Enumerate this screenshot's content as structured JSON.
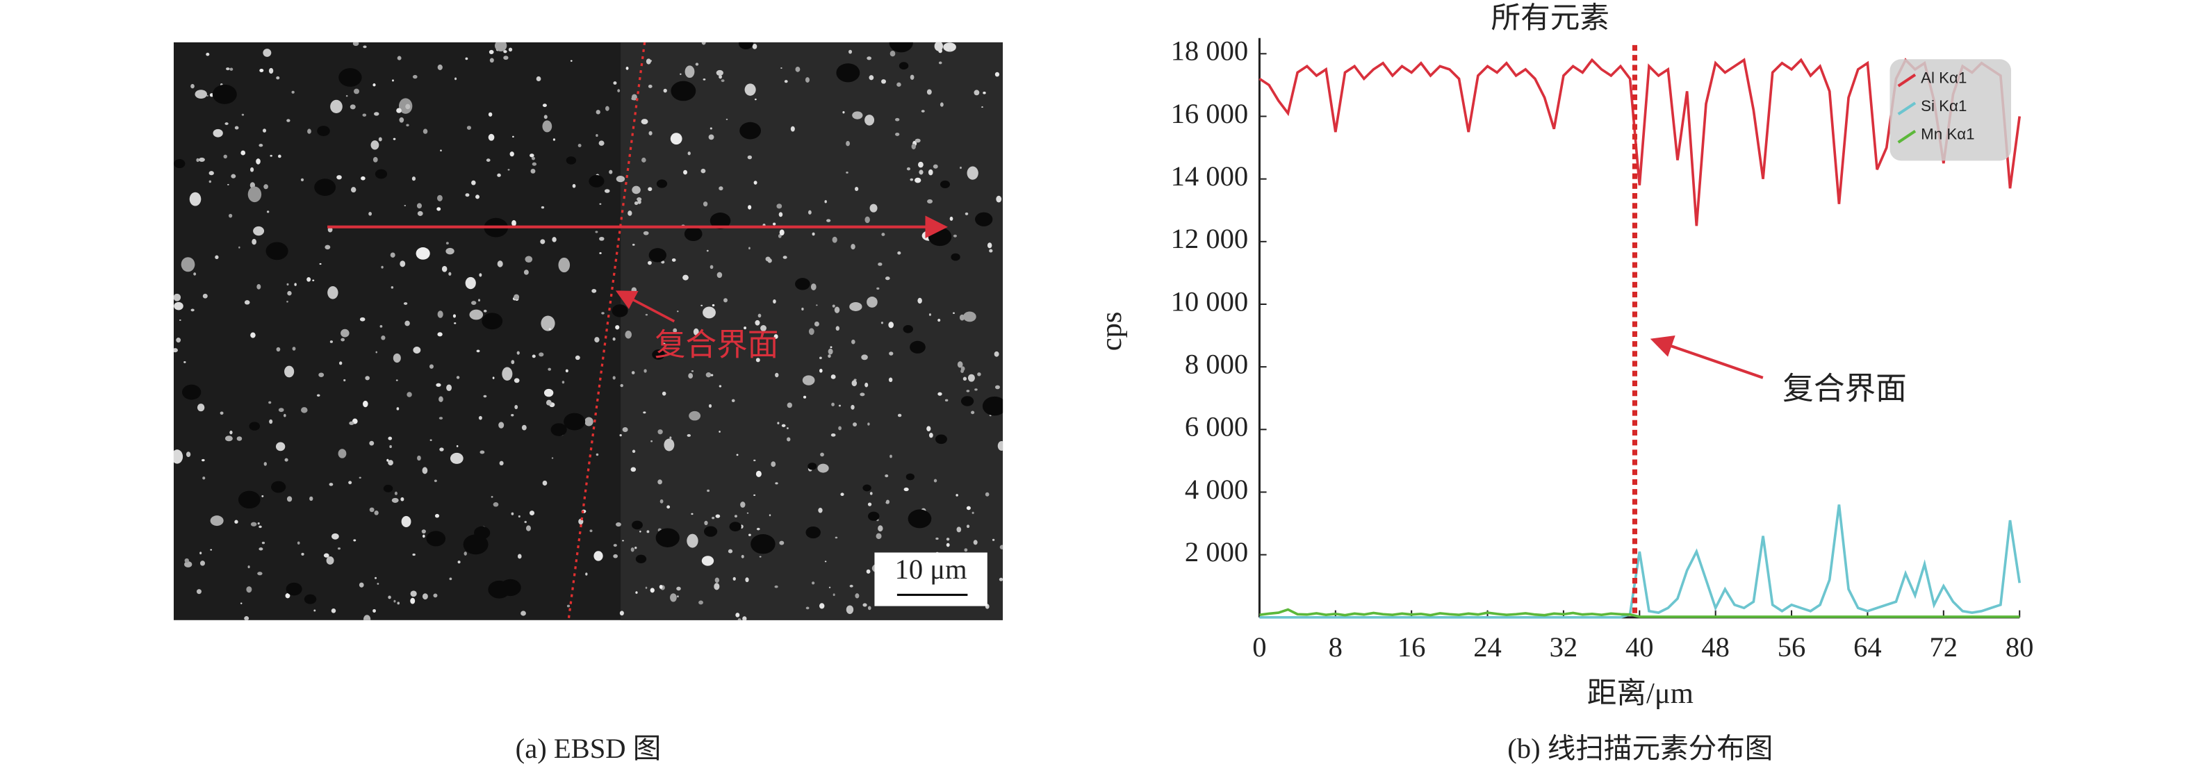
{
  "panel_a": {
    "caption": "(a) EBSD 图",
    "annotation": "复合界面",
    "scale_bar": "10 μm"
  },
  "chart_data": {
    "type": "line",
    "caption": "(b) 线扫描元素分布图",
    "x_label": "距离/μm",
    "y_label": "cps",
    "vline": {
      "x": 39.5,
      "label": "所有元素",
      "color": "#d62828"
    },
    "annotation": "复合界面",
    "x": [
      0,
      1,
      2,
      3,
      4,
      5,
      6,
      7,
      8,
      9,
      10,
      11,
      12,
      13,
      14,
      15,
      16,
      17,
      18,
      19,
      20,
      21,
      22,
      23,
      24,
      25,
      26,
      27,
      28,
      29,
      30,
      31,
      32,
      33,
      34,
      35,
      36,
      37,
      38,
      39,
      40,
      41,
      42,
      43,
      44,
      45,
      46,
      47,
      48,
      49,
      50,
      51,
      52,
      53,
      54,
      55,
      56,
      57,
      58,
      59,
      60,
      61,
      62,
      63,
      64,
      65,
      66,
      67,
      68,
      69,
      70,
      71,
      72,
      73,
      74,
      75,
      76,
      77,
      78,
      79,
      80
    ],
    "series": [
      {
        "name": "Al Kα1",
        "color": "#d9303c",
        "values": [
          17200,
          17000,
          16500,
          16100,
          17400,
          17600,
          17300,
          17500,
          15500,
          17400,
          17600,
          17200,
          17500,
          17700,
          17300,
          17600,
          17400,
          17700,
          17300,
          17600,
          17500,
          17200,
          15500,
          17300,
          17600,
          17400,
          17700,
          17300,
          17500,
          17200,
          16600,
          15600,
          17300,
          17600,
          17400,
          17800,
          17500,
          17300,
          17600,
          17200,
          13800,
          17600,
          17300,
          17500,
          14600,
          16800,
          12500,
          16400,
          17700,
          17400,
          17600,
          17800,
          16200,
          14000,
          17400,
          17700,
          17500,
          17800,
          17300,
          17600,
          16800,
          13200,
          16600,
          17500,
          17700,
          14300,
          15000,
          17200,
          17800,
          17500,
          17700,
          16500,
          14500,
          16700,
          17600,
          17400,
          17700,
          17500,
          17300,
          13700,
          16000
        ]
      },
      {
        "name": "Si Kα1",
        "color": "#6cc5cf",
        "values": [
          0,
          0,
          0,
          0,
          0,
          0,
          0,
          0,
          0,
          0,
          0,
          0,
          0,
          0,
          0,
          0,
          0,
          0,
          0,
          0,
          0,
          0,
          0,
          0,
          0,
          0,
          0,
          0,
          0,
          0,
          0,
          0,
          0,
          0,
          0,
          0,
          0,
          0,
          0,
          100,
          2100,
          200,
          150,
          300,
          600,
          1500,
          2100,
          1200,
          300,
          900,
          400,
          300,
          500,
          2600,
          400,
          200,
          400,
          300,
          200,
          400,
          1200,
          3600,
          900,
          300,
          200,
          300,
          400,
          500,
          1400,
          700,
          1700,
          400,
          1000,
          500,
          200,
          150,
          200,
          300,
          400,
          3100,
          1100
        ]
      },
      {
        "name": "Mn Kα1",
        "color": "#5cb83a",
        "values": [
          80,
          120,
          150,
          250,
          100,
          90,
          130,
          80,
          110,
          70,
          120,
          90,
          140,
          100,
          80,
          120,
          90,
          110,
          70,
          130,
          100,
          80,
          120,
          90,
          150,
          110,
          80,
          100,
          130,
          90,
          70,
          120,
          100,
          140,
          90,
          110,
          80,
          120,
          100,
          90,
          20,
          20,
          20,
          20,
          20,
          20,
          20,
          20,
          20,
          20,
          20,
          20,
          20,
          20,
          20,
          20,
          20,
          20,
          20,
          20,
          20,
          20,
          20,
          20,
          20,
          20,
          20,
          20,
          20,
          20,
          20,
          20,
          20,
          20,
          20,
          20,
          20,
          20,
          20,
          20,
          20
        ]
      }
    ],
    "xlim": [
      0,
      80
    ],
    "xticks": [
      0,
      8,
      16,
      24,
      32,
      40,
      48,
      56,
      64,
      72,
      80
    ],
    "ylim": [
      0,
      18500
    ],
    "yticks": [
      {
        "value": 2000,
        "label": "2 000"
      },
      {
        "value": 4000,
        "label": "4 000"
      },
      {
        "value": 6000,
        "label": "6 000"
      },
      {
        "value": 8000,
        "label": "8 000"
      },
      {
        "value": 10000,
        "label": "10 000"
      },
      {
        "value": 12000,
        "label": "12 000"
      },
      {
        "value": 14000,
        "label": "14 000"
      },
      {
        "value": 16000,
        "label": "16 000"
      },
      {
        "value": 18000,
        "label": "18 000"
      }
    ],
    "legend": "top-right"
  }
}
